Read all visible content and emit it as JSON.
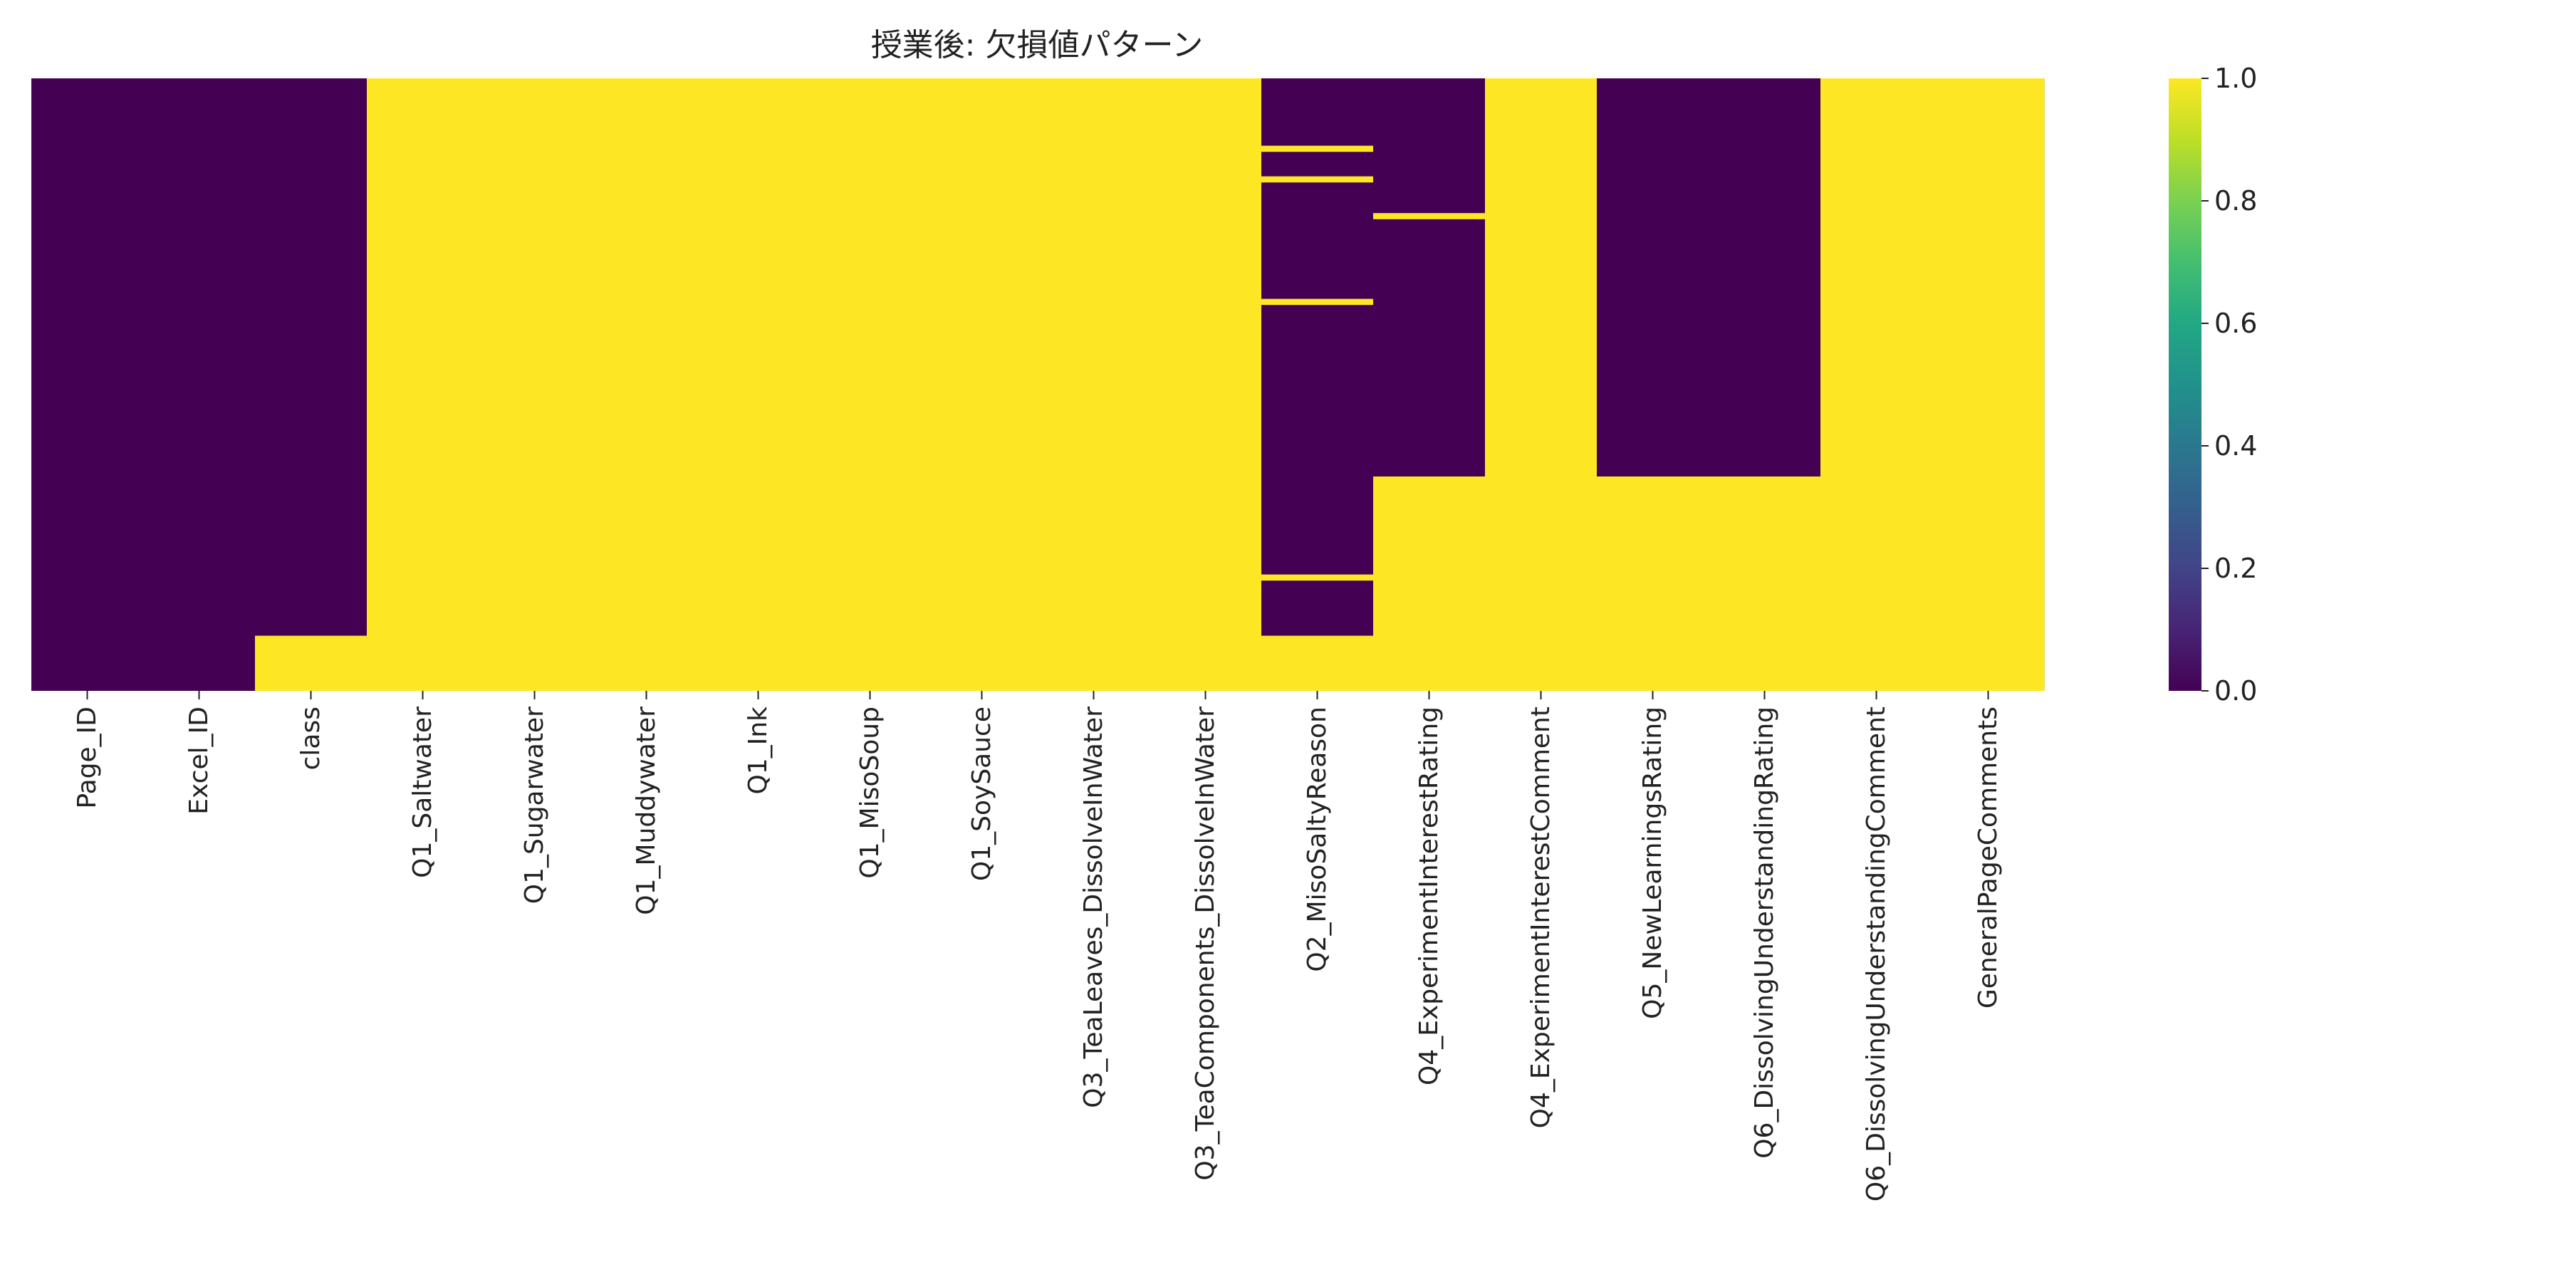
{
  "chart_data": {
    "type": "heatmap",
    "title": "授業後: 欠損値パターン",
    "xlabel": "",
    "ylabel": "",
    "colormap": "viridis",
    "colors": {
      "low": "#440154",
      "high": "#fde725"
    },
    "columns": [
      "Page_ID",
      "Excel_ID",
      "class",
      "Q1_Saltwater",
      "Q1_Sugarwater",
      "Q1_Muddywater",
      "Q1_Ink",
      "Q1_MisoSoup",
      "Q1_SoySauce",
      "Q3_TeaLeaves_DissolveInWater",
      "Q3_TeaComponents_DissolveInWater",
      "Q2_MisoSaltyReason",
      "Q4_ExperimentInterestRating",
      "Q4_ExperimentInterestComment",
      "Q5_NewLearningsRating",
      "Q6_DissolvingUnderstandingRating",
      "Q6_DissolvingUnderstandingComment",
      "GeneralPageComments"
    ],
    "row_count": 100,
    "missing_row_ranges": [
      [],
      [],
      [
        [
          91,
          99
        ]
      ],
      [
        [
          0,
          99
        ]
      ],
      [
        [
          0,
          99
        ]
      ],
      [
        [
          0,
          99
        ]
      ],
      [
        [
          0,
          99
        ]
      ],
      [
        [
          0,
          99
        ]
      ],
      [
        [
          0,
          99
        ]
      ],
      [
        [
          0,
          99
        ]
      ],
      [
        [
          0,
          99
        ]
      ],
      [
        [
          11,
          11
        ],
        [
          16,
          16
        ],
        [
          36,
          36
        ],
        [
          81,
          81
        ],
        [
          91,
          99
        ]
      ],
      [
        [
          22,
          22
        ],
        [
          65,
          99
        ]
      ],
      [
        [
          0,
          99
        ]
      ],
      [
        [
          65,
          99
        ]
      ],
      [
        [
          65,
          99
        ]
      ],
      [
        [
          0,
          99
        ]
      ],
      [
        [
          0,
          99
        ]
      ]
    ],
    "colorbar": {
      "range": [
        0.0,
        1.0
      ],
      "ticks": [
        "0.0",
        "0.2",
        "0.4",
        "0.6",
        "0.8",
        "1.0"
      ]
    }
  }
}
